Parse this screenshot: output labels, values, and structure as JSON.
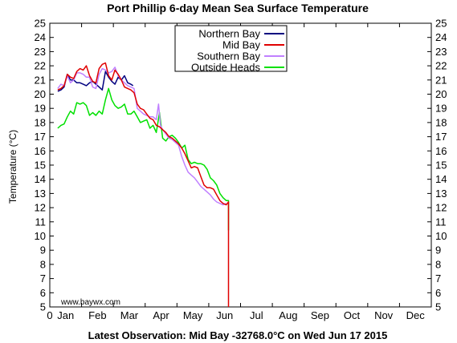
{
  "chart_data": {
    "type": "line",
    "title": "Port Phillip 6-day Mean Sea Surface Temperature",
    "ylabel": "Temperature (°C)",
    "footer": "Latest Observation: Mid Bay -32768.0°C on Wed Jun 17 2015",
    "watermark": "www.baywx.com",
    "x_tick_labels": [
      "0",
      "Jan",
      "Feb",
      "Mar",
      "Apr",
      "May",
      "Jun",
      "Jul",
      "Aug",
      "Sep",
      "Oct",
      "Nov",
      "Dec"
    ],
    "y_ticks": [
      5,
      6,
      7,
      8,
      9,
      10,
      11,
      12,
      13,
      14,
      15,
      16,
      17,
      18,
      19,
      20,
      21,
      22,
      23,
      24,
      25
    ],
    "xlim": [
      0,
      12
    ],
    "ylim": [
      5,
      25
    ],
    "grid": false,
    "legend_position": "top-center",
    "series": [
      {
        "name": "Northern Bay",
        "color": "#000080",
        "x": [
          0.25,
          0.35,
          0.45,
          0.55,
          0.65,
          0.75,
          0.85,
          0.95,
          1.05,
          1.15,
          1.25,
          1.35,
          1.45,
          1.55,
          1.65,
          1.75,
          1.85,
          1.95,
          2.05,
          2.15,
          2.25,
          2.35,
          2.45,
          2.55,
          2.62
        ],
        "y": [
          20.2,
          20.3,
          20.5,
          21.4,
          21.0,
          21.0,
          20.8,
          20.8,
          20.7,
          20.6,
          20.8,
          20.9,
          20.7,
          20.5,
          20.3,
          21.6,
          21.2,
          20.9,
          20.7,
          21.2,
          21.0,
          21.3,
          20.8,
          20.7,
          20.6
        ]
      },
      {
        "name": "Mid Bay",
        "color": "#e00000",
        "x": [
          0.25,
          0.35,
          0.45,
          0.55,
          0.65,
          0.75,
          0.85,
          0.95,
          1.05,
          1.15,
          1.25,
          1.35,
          1.45,
          1.55,
          1.65,
          1.75,
          1.85,
          1.95,
          2.05,
          2.15,
          2.25,
          2.35,
          2.45,
          2.55,
          2.65,
          2.75,
          2.85,
          2.95,
          3.05,
          3.15,
          3.25,
          3.35,
          3.45,
          3.55,
          3.65,
          3.75,
          3.85,
          3.95,
          4.05,
          4.15,
          4.25,
          4.35,
          4.45,
          4.55,
          4.65,
          4.75,
          4.85,
          4.95,
          5.05,
          5.15,
          5.25,
          5.35,
          5.45,
          5.55,
          5.62,
          5.62
        ],
        "y": [
          20.3,
          20.4,
          20.6,
          21.4,
          21.2,
          21.1,
          21.6,
          21.8,
          21.7,
          22.0,
          21.3,
          20.9,
          20.8,
          21.8,
          22.1,
          22.2,
          21.3,
          21.0,
          21.7,
          21.4,
          21.0,
          20.5,
          20.4,
          20.3,
          20.1,
          19.3,
          19.0,
          18.9,
          18.6,
          18.3,
          18.2,
          17.8,
          17.7,
          17.5,
          17.3,
          17.0,
          16.9,
          16.7,
          16.5,
          16.2,
          15.8,
          15.3,
          14.8,
          14.9,
          14.8,
          14.2,
          13.6,
          13.4,
          13.4,
          13.3,
          12.9,
          12.5,
          12.3,
          12.2,
          12.4,
          5.0
        ]
      },
      {
        "name": "Southern Bay",
        "color": "#c080ff",
        "x": [
          0.25,
          0.35,
          0.45,
          0.55,
          0.65,
          0.75,
          0.85,
          0.95,
          1.05,
          1.15,
          1.25,
          1.35,
          1.45,
          1.55,
          1.65,
          1.75,
          1.85,
          1.95,
          2.05,
          2.15,
          2.25,
          2.35,
          2.45,
          2.55,
          2.65,
          2.75,
          2.85,
          2.95,
          3.05,
          3.15,
          3.25,
          3.35,
          3.42,
          3.48,
          3.55,
          3.65,
          3.75,
          3.85,
          3.95,
          4.05,
          4.15,
          4.25,
          4.35,
          4.45,
          4.55,
          4.65,
          4.75,
          4.85,
          4.95,
          5.05,
          5.15,
          5.25,
          5.35,
          5.45,
          5.55
        ],
        "y": [
          20.4,
          20.7,
          20.6,
          21.3,
          20.8,
          21.0,
          21.5,
          21.5,
          21.4,
          21.2,
          21.2,
          20.5,
          20.4,
          21.4,
          21.8,
          21.7,
          21.5,
          21.6,
          21.9,
          21.3,
          21.0,
          20.8,
          20.6,
          20.5,
          20.4,
          19.0,
          18.8,
          18.6,
          18.5,
          18.4,
          18.4,
          18.2,
          19.3,
          17.8,
          17.5,
          17.2,
          16.9,
          16.8,
          16.6,
          16.4,
          15.6,
          15.0,
          14.5,
          14.3,
          14.1,
          13.8,
          13.5,
          13.3,
          13.1,
          12.9,
          12.6,
          12.4,
          12.3,
          12.2,
          12.3
        ]
      },
      {
        "name": "Outside Heads",
        "color": "#00e000",
        "x": [
          0.25,
          0.35,
          0.45,
          0.55,
          0.65,
          0.75,
          0.85,
          0.95,
          1.05,
          1.15,
          1.25,
          1.35,
          1.45,
          1.55,
          1.65,
          1.75,
          1.85,
          1.95,
          2.05,
          2.15,
          2.25,
          2.35,
          2.45,
          2.55,
          2.65,
          2.75,
          2.85,
          2.95,
          3.05,
          3.15,
          3.25,
          3.35,
          3.45,
          3.55,
          3.65,
          3.75,
          3.85,
          3.95,
          4.05,
          4.15,
          4.25,
          4.35,
          4.45,
          4.55,
          4.65,
          4.75,
          4.85,
          4.95,
          5.05,
          5.15,
          5.25,
          5.35,
          5.45,
          5.55,
          5.62,
          5.62
        ],
        "y": [
          17.6,
          17.8,
          17.9,
          18.4,
          18.8,
          18.6,
          19.4,
          19.3,
          19.4,
          19.2,
          18.5,
          18.7,
          18.5,
          18.8,
          18.6,
          19.6,
          20.4,
          19.6,
          19.2,
          19.0,
          19.1,
          19.3,
          18.6,
          18.6,
          18.8,
          18.4,
          18.0,
          18.1,
          18.2,
          17.6,
          17.8,
          17.3,
          18.7,
          16.9,
          16.7,
          17.0,
          17.1,
          16.9,
          16.6,
          16.2,
          16.4,
          15.4,
          15.1,
          15.2,
          15.1,
          15.1,
          15.0,
          14.7,
          14.1,
          13.9,
          13.6,
          13.0,
          12.7,
          12.5,
          12.5,
          10.4
        ]
      }
    ]
  }
}
